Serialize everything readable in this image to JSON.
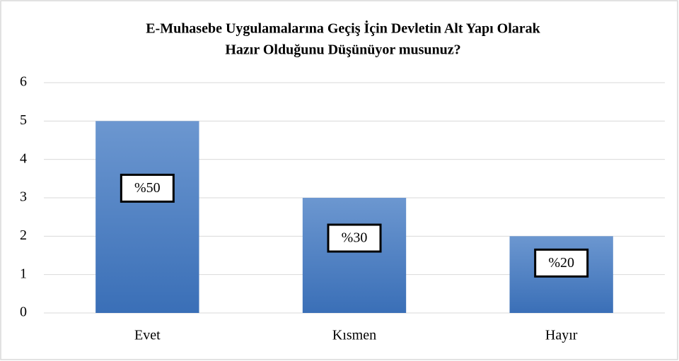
{
  "chart_data": {
    "type": "bar",
    "title": [
      "E-Muhasebe Uygulamalarına  Geçiş İçin Devletin Alt Yapı Olarak",
      "Hazır Olduğunu Düşünüyor musunuz?"
    ],
    "categories": [
      "Evet",
      "Kısmen",
      "Hayır"
    ],
    "values": [
      5,
      3,
      2
    ],
    "value_labels": [
      "%50",
      "%30",
      "%20"
    ],
    "color": "#4a7fc4",
    "ylim": [
      0,
      6
    ],
    "yticks": [
      0,
      1,
      2,
      3,
      4,
      5,
      6
    ],
    "grid": true
  }
}
